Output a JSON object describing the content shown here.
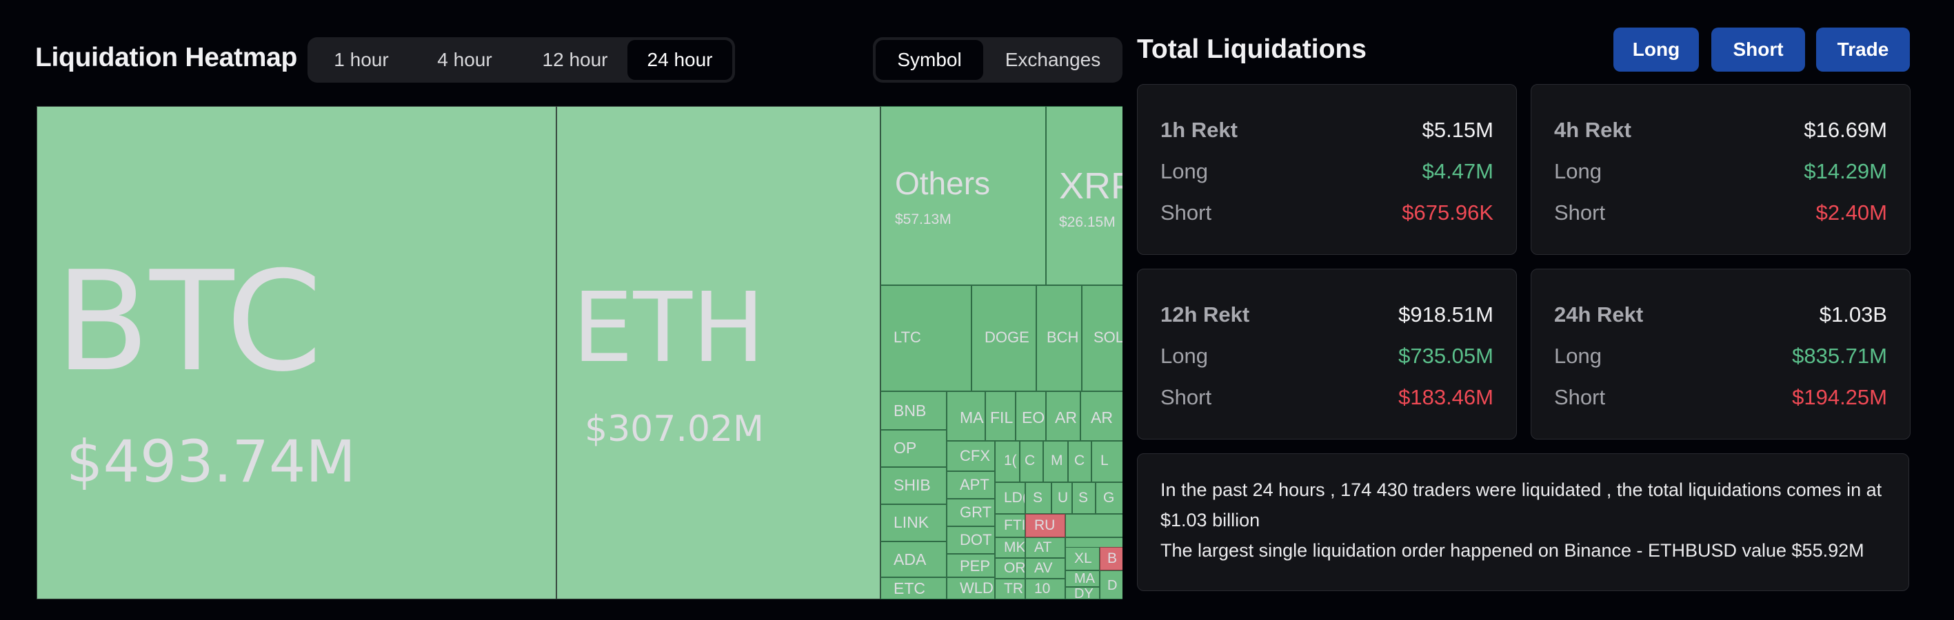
{
  "heatmap": {
    "title": "Liquidation Heatmap",
    "time_tabs": [
      "1 hour",
      "4 hour",
      "12 hour",
      "24 hour"
    ],
    "active_time_tab": "24 hour",
    "view_tabs": [
      "Symbol",
      "Exchanges"
    ],
    "active_view_tab": "Symbol",
    "cells": [
      {
        "symbol": "BTC",
        "amount": "$493.74M"
      },
      {
        "symbol": "ETH",
        "amount": "$307.02M"
      },
      {
        "symbol": "Others",
        "amount": "$57.13M"
      },
      {
        "symbol": "XRP",
        "amount": "$26.15M"
      },
      {
        "symbol": "LTC",
        "amount": ""
      },
      {
        "symbol": "DOGE",
        "amount": ""
      },
      {
        "symbol": "BCH",
        "amount": ""
      },
      {
        "symbol": "SOL",
        "amount": ""
      },
      {
        "symbol": "BNB",
        "amount": ""
      },
      {
        "symbol": "MA",
        "amount": ""
      },
      {
        "symbol": "FIL",
        "amount": ""
      },
      {
        "symbol": "EO",
        "amount": ""
      },
      {
        "symbol": "AR",
        "amount": ""
      },
      {
        "symbol": "AR",
        "amount": ""
      },
      {
        "symbol": "OP",
        "amount": ""
      },
      {
        "symbol": "CFX",
        "amount": ""
      },
      {
        "symbol": "1(",
        "amount": ""
      },
      {
        "symbol": "C",
        "amount": ""
      },
      {
        "symbol": "M",
        "amount": ""
      },
      {
        "symbol": "C",
        "amount": ""
      },
      {
        "symbol": "L",
        "amount": ""
      },
      {
        "symbol": "SHIB",
        "amount": ""
      },
      {
        "symbol": "APT",
        "amount": ""
      },
      {
        "symbol": "LD(",
        "amount": ""
      },
      {
        "symbol": "S",
        "amount": ""
      },
      {
        "symbol": "U",
        "amount": ""
      },
      {
        "symbol": "S",
        "amount": ""
      },
      {
        "symbol": "G",
        "amount": ""
      },
      {
        "symbol": "LINK",
        "amount": ""
      },
      {
        "symbol": "GRT",
        "amount": ""
      },
      {
        "symbol": "FTI",
        "amount": ""
      },
      {
        "symbol": "RU",
        "amount": ""
      },
      {
        "symbol": "ADA",
        "amount": ""
      },
      {
        "symbol": "DOT",
        "amount": ""
      },
      {
        "symbol": "MK",
        "amount": ""
      },
      {
        "symbol": "AT",
        "amount": ""
      },
      {
        "symbol": "PEP",
        "amount": ""
      },
      {
        "symbol": "OR",
        "amount": ""
      },
      {
        "symbol": "AV",
        "amount": ""
      },
      {
        "symbol": "XL",
        "amount": ""
      },
      {
        "symbol": "B",
        "amount": ""
      },
      {
        "symbol": "ETC",
        "amount": ""
      },
      {
        "symbol": "WLD",
        "amount": ""
      },
      {
        "symbol": "TR",
        "amount": ""
      },
      {
        "symbol": "10",
        "amount": ""
      },
      {
        "symbol": "MA",
        "amount": ""
      },
      {
        "symbol": "DY",
        "amount": ""
      },
      {
        "symbol": "D",
        "amount": ""
      }
    ]
  },
  "liquidations": {
    "title": "Total Liquidations",
    "buttons": [
      "Long",
      "Short",
      "Trade"
    ],
    "cards": [
      {
        "label": "1h Rekt",
        "total": "$5.15M",
        "long_label": "Long",
        "long": "$4.47M",
        "short_label": "Short",
        "short": "$675.96K"
      },
      {
        "label": "4h Rekt",
        "total": "$16.69M",
        "long_label": "Long",
        "long": "$14.29M",
        "short_label": "Short",
        "short": "$2.40M"
      },
      {
        "label": "12h Rekt",
        "total": "$918.51M",
        "long_label": "Long",
        "long": "$735.05M",
        "short_label": "Short",
        "short": "$183.46M"
      },
      {
        "label": "24h Rekt",
        "total": "$1.03B",
        "long_label": "Long",
        "long": "$835.71M",
        "short_label": "Short",
        "short": "$194.25M"
      }
    ],
    "summary_line1": "In the past 24 hours , 174 430 traders were liquidated , the total liquidations comes in at $1.03 billion",
    "summary_line2": "The largest single liquidation order happened on Binance - ETHBUSD value $55.92M"
  },
  "colors": {
    "background": "#020308",
    "long_green": "#5bc08b",
    "short_red": "#f04a55",
    "button_blue": "#1c4aa6",
    "heat_green": "#90cfa1",
    "heat_red": "#d96b73"
  }
}
